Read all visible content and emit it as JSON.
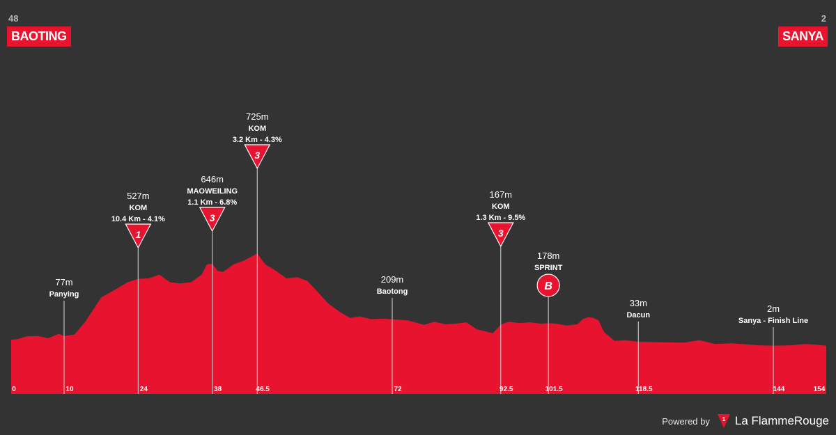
{
  "stage": {
    "start": {
      "name": "BAOTING",
      "altitude": "48"
    },
    "finish": {
      "name": "SANYA",
      "altitude": "2"
    }
  },
  "footer": {
    "powered_by": "Powered by",
    "brand": "La FlammeRouge"
  },
  "colors": {
    "profile_fill": "#e8132e",
    "background": "#333333",
    "marker_line": "#bdbdbd"
  },
  "chart_data": {
    "type": "area",
    "xlabel": "",
    "ylabel": "",
    "xlim": [
      0,
      154
    ],
    "ylim": [
      0,
      1000
    ],
    "x_ticks": [
      "0",
      "10",
      "24",
      "38",
      "46.5",
      "72",
      "92.5",
      "101.5",
      "118.5",
      "144",
      "154"
    ],
    "profile": {
      "x": [
        0,
        1,
        3,
        5,
        7,
        9,
        10,
        12,
        14,
        17,
        20,
        22,
        24,
        26,
        28,
        30,
        32,
        34,
        36,
        37,
        38,
        39,
        40,
        42,
        44,
        46.5,
        48,
        50,
        52,
        54,
        56,
        58,
        60,
        62,
        64,
        66,
        68,
        70,
        72,
        75,
        78,
        80,
        82,
        84,
        86,
        88,
        90,
        91,
        92.5,
        94,
        96,
        98,
        100,
        101.5,
        103,
        105,
        107,
        108,
        109,
        110,
        111,
        112,
        114,
        116,
        118.5,
        121,
        124,
        127,
        130,
        133,
        136,
        139,
        141,
        144,
        147,
        150,
        152,
        154
      ],
      "y": [
        48,
        52,
        75,
        78,
        60,
        95,
        77,
        90,
        190,
        380,
        450,
        500,
        527,
        530,
        560,
        500,
        490,
        500,
        560,
        640,
        646,
        590,
        580,
        640,
        670,
        725,
        640,
        590,
        530,
        540,
        510,
        420,
        330,
        270,
        220,
        230,
        210,
        215,
        209,
        200,
        165,
        190,
        170,
        175,
        185,
        130,
        110,
        100,
        167,
        190,
        180,
        185,
        175,
        178,
        175,
        160,
        170,
        210,
        225,
        220,
        200,
        110,
        40,
        45,
        33,
        30,
        28,
        25,
        45,
        15,
        20,
        12,
        5,
        2,
        4,
        15,
        10,
        2
      ]
    },
    "points": [
      {
        "km": 10,
        "altitude": "77m",
        "name": "Panying",
        "type": "town"
      },
      {
        "km": 24,
        "altitude": "527m",
        "name": "KOM",
        "detail": "10.4 Km - 4.1%",
        "type": "kom",
        "category": "1"
      },
      {
        "km": 38,
        "altitude": "646m",
        "name": "MAOWEILING",
        "detail": "1.1 Km - 6.8%",
        "type": "kom",
        "category": "3"
      },
      {
        "km": 46.5,
        "altitude": "725m",
        "name": "KOM",
        "detail": "3.2 Km - 4.3%",
        "type": "kom",
        "category": "3"
      },
      {
        "km": 72,
        "altitude": "209m",
        "name": "Baotong",
        "type": "town"
      },
      {
        "km": 92.5,
        "altitude": "167m",
        "name": "KOM",
        "detail": "1.3 Km - 9.5%",
        "type": "kom",
        "category": "3"
      },
      {
        "km": 101.5,
        "altitude": "178m",
        "name": "SPRINT",
        "type": "sprint",
        "category": "B"
      },
      {
        "km": 118.5,
        "altitude": "33m",
        "name": "Dacun",
        "type": "town"
      },
      {
        "km": 144,
        "altitude": "2m",
        "name": "Sanya - Finish Line",
        "type": "town"
      }
    ]
  }
}
